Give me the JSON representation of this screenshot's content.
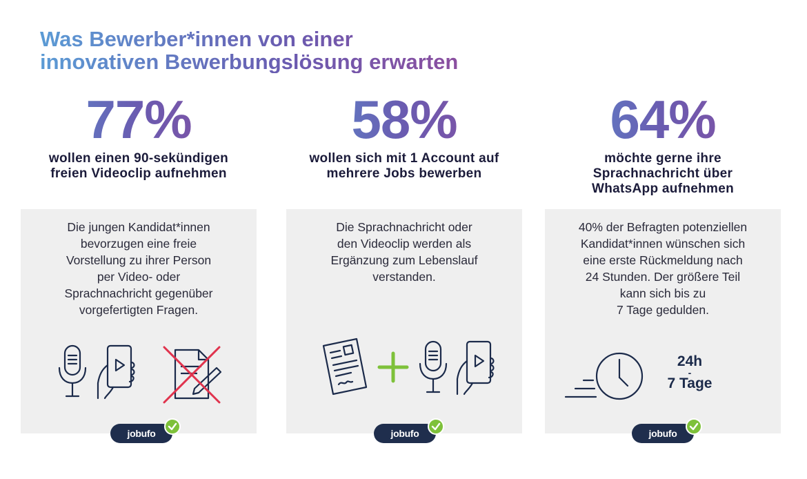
{
  "title": {
    "line1": "Was Bewerber*innen von einer",
    "line2": "innovativen Bewerbungslösung erwarten"
  },
  "columns": [
    {
      "stat": "77%",
      "headline_l1": "wollen einen 90-sekündigen",
      "headline_l2": "freien Videoclip aufnehmen",
      "text": [
        "Die jungen Kandidat*innen",
        "bevorzugen eine freie",
        "Vorstellung zu ihrer Person",
        "per Video- oder",
        "Sprachnachricht gegenüber",
        "vorgefertigten Fragen."
      ],
      "icons": [
        "microphone-icon",
        "smartphone-video-icon",
        "crossed-out-form-icon"
      ]
    },
    {
      "stat": "58%",
      "headline_l1": "wollen sich mit 1 Account auf",
      "headline_l2": "mehrere Jobs bewerben",
      "text": [
        "Die Sprachnachricht oder",
        "den Videoclip werden als",
        "Ergänzung zum Lebenslauf",
        "verstanden."
      ],
      "icons": [
        "resume-document-icon",
        "plus-icon",
        "microphone-icon",
        "smartphone-video-icon"
      ]
    },
    {
      "stat": "64%",
      "headline_l1": "möchte gerne ihre",
      "headline_l2": "Sprachnachricht über",
      "headline_l3": "WhatsApp aufnehmen",
      "text": [
        "40% der Befragten potenziellen",
        "Kandidat*innen wünschen sich",
        "eine erste Rückmeldung nach",
        "24 Stunden. Der größere Teil",
        "kann sich bis zu",
        "7 Tage gedulden."
      ],
      "time_l1": "24h",
      "time_l2": "-",
      "time_l3": "7 Tage",
      "icons": [
        "fast-clock-icon"
      ]
    }
  ],
  "badge": {
    "label": "jobufo",
    "check_color": "#7ec13a",
    "bg_color": "#1f2e4d"
  },
  "colors": {
    "navy": "#1b2a4a",
    "green": "#7ec13a",
    "red": "#e0334d",
    "card": "#efefef"
  }
}
